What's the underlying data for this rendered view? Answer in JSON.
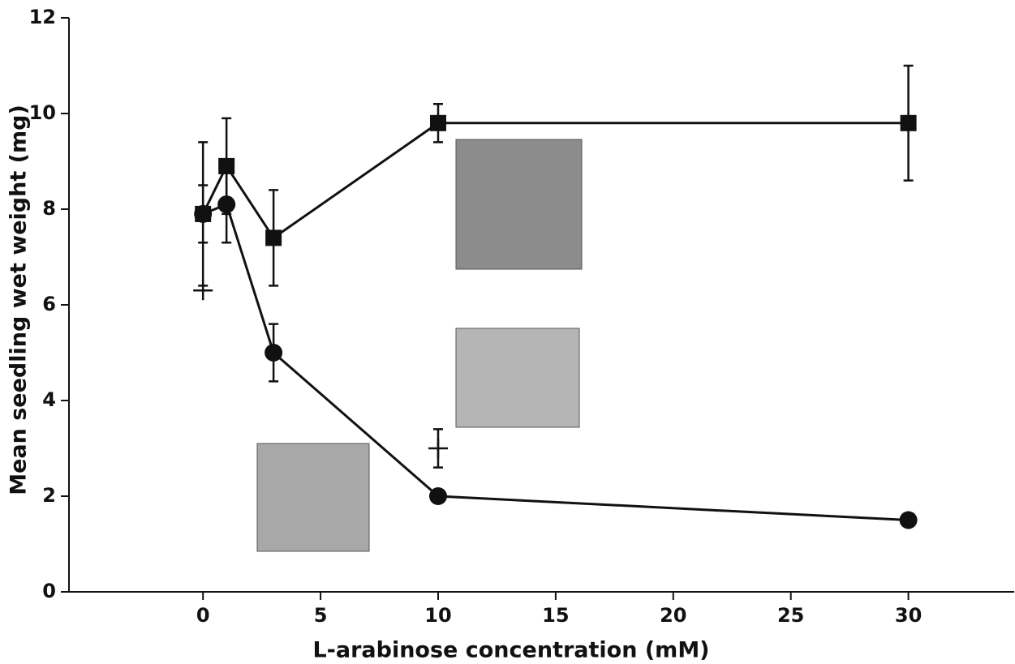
{
  "chart_data": {
    "type": "line",
    "x_label": "L-arabinose concentration (mM)",
    "y_label": "Mean seedling wet weight (mg)",
    "xlim": [
      -5.7,
      34.5
    ],
    "ylim": [
      0,
      12
    ],
    "xticks": [
      0,
      5,
      10,
      15,
      20,
      25,
      30
    ],
    "yticks": [
      0,
      2,
      4,
      6,
      8,
      10,
      12
    ],
    "series": [
      {
        "marker": "square",
        "color": "#111111",
        "line": true,
        "x": [
          0,
          1,
          3,
          10,
          30
        ],
        "values": [
          7.9,
          8.9,
          7.4,
          9.8,
          9.8
        ],
        "errors": [
          0.6,
          1.0,
          1.0,
          0.4,
          1.2
        ]
      },
      {
        "marker": "circle",
        "color": "#111111",
        "line": true,
        "x": [
          0,
          1,
          3,
          10,
          30
        ],
        "values": [
          7.9,
          8.1,
          5.0,
          2.0,
          1.5
        ],
        "errors": [
          1.5,
          0.8,
          0.6,
          null,
          null
        ]
      },
      {
        "marker": "plus",
        "color": "#111111",
        "line": false,
        "x": [
          0,
          10
        ],
        "values": [
          6.3,
          3.0
        ],
        "errors": [
          null,
          0.4
        ]
      }
    ]
  }
}
